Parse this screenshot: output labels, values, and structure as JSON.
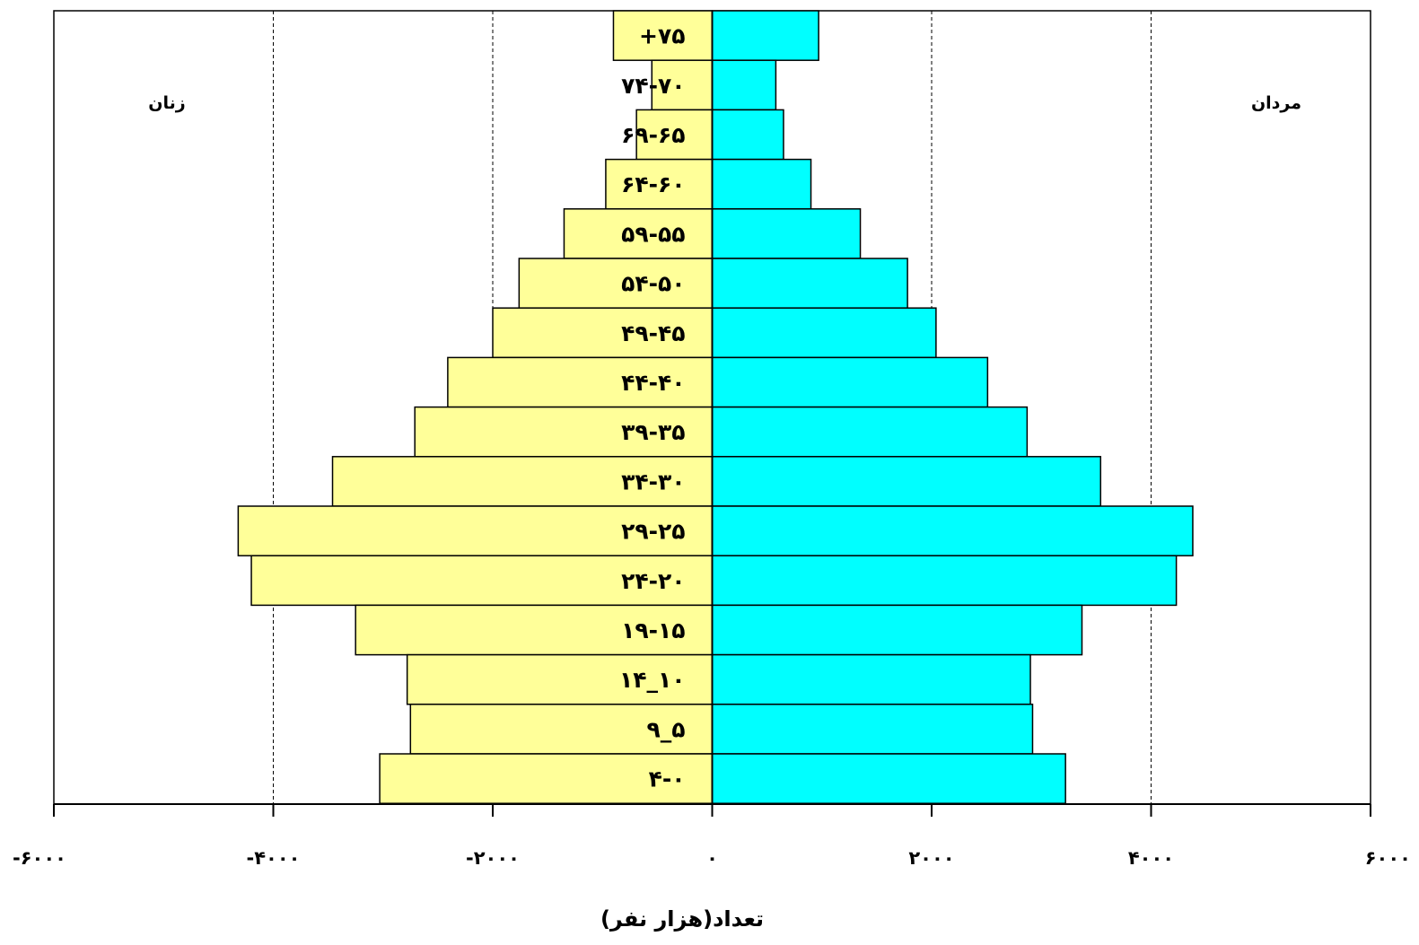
{
  "chart_data": {
    "type": "bar",
    "orientation": "horizontal",
    "subtype": "population-pyramid",
    "categories": [
      "+۷۵",
      "۷۴-۷۰",
      "۶۹-۶۵",
      "۶۴-۶۰",
      "۵۹-۵۵",
      "۵۴-۵۰",
      "۴۹-۴۵",
      "۴۴-۴۰",
      "۳۹-۳۵",
      "۳۴-۳۰",
      "۲۹-۲۵",
      "۲۴-۲۰",
      "۱۹-۱۵",
      "۱۴_۱۰",
      "۹_۵",
      "۴-۰"
    ],
    "series": [
      {
        "name": "زنان",
        "color": "#FFFF99",
        "values": [
          -900,
          -550,
          -690,
          -970,
          -1350,
          -1760,
          -2000,
          -2410,
          -2710,
          -3460,
          -4320,
          -4200,
          -3250,
          -2780,
          -2750,
          -3030
        ]
      },
      {
        "name": "مردان",
        "color": "#00FFFF",
        "values": [
          970,
          580,
          650,
          900,
          1350,
          1780,
          2040,
          2510,
          2870,
          3540,
          4380,
          4230,
          3370,
          2900,
          2920,
          3220
        ]
      }
    ],
    "xlim": [
      -6000,
      6000
    ],
    "xticks": [
      -6000,
      -4000,
      -2000,
      0,
      2000,
      4000,
      6000
    ],
    "xtick_labels": [
      "-۶۰۰۰",
      "-۴۰۰۰",
      "-۲۰۰۰",
      "۰",
      "۲۰۰۰",
      "۴۰۰۰",
      "۶۰۰۰"
    ],
    "xlabel": "تعداد(هزار نفر)",
    "ylabel": "",
    "left_label": "زنان",
    "right_label": "مردان",
    "grid": "vertical dashed"
  }
}
